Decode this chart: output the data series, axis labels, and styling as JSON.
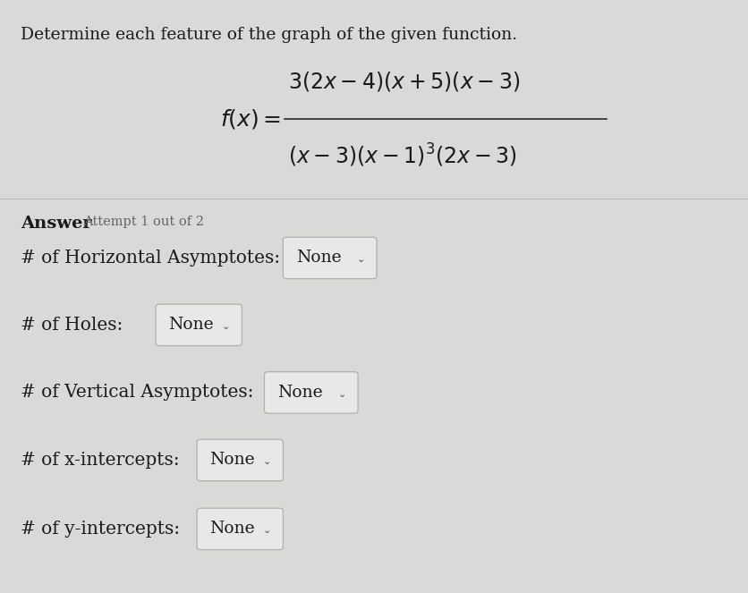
{
  "background_color": "#d8d8d8",
  "title_text": "Determine each feature of the graph of the given function.",
  "title_fontsize": 13.5,
  "title_color": "#1a1a1a",
  "answer_label": "Answer",
  "attempt_label": "Attempt 1 out of 2",
  "rows": [
    {
      "label": "# of Horizontal Asymptotes:",
      "value": "None",
      "box_width": 0.115
    },
    {
      "label": "# of Holes:",
      "value": "None",
      "box_width": 0.105
    },
    {
      "label": "# of Vertical Asymptotes:",
      "value": "None",
      "box_width": 0.115
    },
    {
      "label": "# of x-intercepts:",
      "value": "None",
      "box_width": 0.105
    },
    {
      "label": "# of y-intercepts:",
      "value": "None",
      "box_width": 0.105
    }
  ],
  "label_fontsize": 14.5,
  "value_fontsize": 13.5,
  "answer_fontsize": 14,
  "attempt_fontsize": 10.5,
  "box_color": "#e8e8e8",
  "box_border": "#b0b0b0",
  "text_color": "#1a1a1a",
  "gray_text": "#666666",
  "formula_fontsize": 18,
  "label_offsets": [
    0.345,
    0.175,
    0.32,
    0.23,
    0.23
  ]
}
